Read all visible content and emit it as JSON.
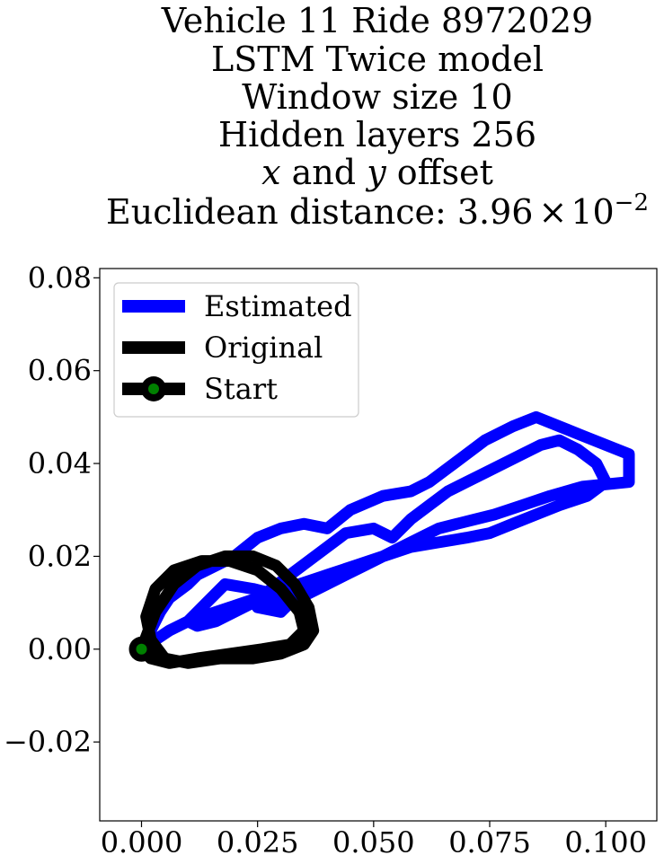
{
  "chart_data": {
    "type": "line",
    "title": {
      "line1": "Vehicle 11 Ride 8972029",
      "line2": "LSTM Twice model",
      "line3": "Window size 10",
      "line4": "Hidden layers 256",
      "line5_x": "x",
      "line5_and": " and ",
      "line5_y": "y",
      "line5_rest": " offset",
      "line6_prefix": "Euclidean distance: 3.96",
      "line6_times": "×",
      "line6_base": "10",
      "line6_exp": "−2"
    },
    "xlim": [
      -0.009,
      0.111
    ],
    "ylim": [
      -0.037,
      0.082
    ],
    "xticks": [
      {
        "value": 0.0,
        "label": "0.000"
      },
      {
        "value": 0.025,
        "label": "0.025"
      },
      {
        "value": 0.05,
        "label": "0.050"
      },
      {
        "value": 0.075,
        "label": "0.075"
      },
      {
        "value": 0.1,
        "label": "0.100"
      }
    ],
    "yticks": [
      {
        "value": -0.02,
        "label": "−0.02"
      },
      {
        "value": 0.0,
        "label": "0.00"
      },
      {
        "value": 0.02,
        "label": "0.02"
      },
      {
        "value": 0.04,
        "label": "0.04"
      },
      {
        "value": 0.06,
        "label": "0.06"
      },
      {
        "value": 0.08,
        "label": "0.08"
      }
    ],
    "grid": false,
    "legend_position": "upper-left",
    "legend": [
      {
        "label": "Estimated",
        "color": "#0000ff"
      },
      {
        "label": "Original",
        "color": "#000000"
      },
      {
        "label": "Start",
        "color": "#000000",
        "marker_color": "#008000"
      }
    ],
    "series": [
      {
        "name": "Estimated",
        "color": "#0000ff",
        "x": [
          0.0,
          0.002,
          0.004,
          0.006,
          0.01,
          0.012,
          0.016,
          0.02,
          0.025,
          0.03,
          0.035,
          0.04,
          0.045,
          0.052,
          0.058,
          0.062,
          0.066,
          0.07,
          0.074,
          0.08,
          0.085,
          0.095,
          0.105,
          0.105,
          0.095,
          0.088,
          0.082,
          0.076,
          0.072,
          0.068,
          0.064,
          0.06,
          0.056,
          0.052,
          0.048,
          0.044,
          0.04,
          0.036,
          0.032,
          0.028,
          0.025,
          0.03,
          0.032,
          0.028,
          0.024,
          0.018,
          0.014,
          0.01,
          0.012,
          0.016,
          0.02,
          0.024,
          0.028,
          0.032,
          0.036,
          0.04,
          0.044,
          0.05,
          0.054,
          0.058,
          0.062,
          0.066,
          0.07,
          0.074,
          0.078,
          0.082,
          0.086,
          0.09,
          0.094,
          0.098,
          0.1,
          0.096,
          0.09,
          0.085,
          0.08,
          0.075,
          0.07,
          0.064,
          0.058,
          0.052,
          0.046,
          0.04,
          0.034,
          0.028,
          0.022,
          0.016,
          0.01,
          0.006,
          0.003,
          0.0
        ],
        "y": [
          0.0,
          0.004,
          0.008,
          0.011,
          0.014,
          0.016,
          0.018,
          0.02,
          0.024,
          0.026,
          0.027,
          0.026,
          0.03,
          0.033,
          0.034,
          0.036,
          0.039,
          0.042,
          0.045,
          0.048,
          0.05,
          0.046,
          0.042,
          0.036,
          0.035,
          0.033,
          0.031,
          0.029,
          0.028,
          0.027,
          0.026,
          0.024,
          0.022,
          0.02,
          0.018,
          0.016,
          0.014,
          0.012,
          0.011,
          0.01,
          0.009,
          0.008,
          0.01,
          0.012,
          0.013,
          0.014,
          0.01,
          0.006,
          0.005,
          0.006,
          0.008,
          0.01,
          0.013,
          0.016,
          0.019,
          0.022,
          0.025,
          0.026,
          0.024,
          0.028,
          0.031,
          0.034,
          0.036,
          0.038,
          0.04,
          0.042,
          0.044,
          0.045,
          0.043,
          0.04,
          0.036,
          0.033,
          0.031,
          0.029,
          0.027,
          0.025,
          0.024,
          0.023,
          0.022,
          0.02,
          0.018,
          0.016,
          0.014,
          0.012,
          0.01,
          0.008,
          0.006,
          0.004,
          0.002,
          0.0
        ]
      },
      {
        "name": "Original",
        "color": "#000000",
        "x": [
          0.0,
          0.003,
          0.007,
          0.012,
          0.018,
          0.024,
          0.029,
          0.033,
          0.036,
          0.037,
          0.035,
          0.03,
          0.024,
          0.017,
          0.01,
          0.005,
          0.002,
          0.001,
          0.003,
          0.007,
          0.013,
          0.019,
          0.025,
          0.03,
          0.034,
          0.035,
          0.032,
          0.026,
          0.019,
          0.012,
          0.006,
          0.002,
          0.0
        ],
        "y": [
          0.0,
          0.008,
          0.014,
          0.018,
          0.02,
          0.02,
          0.018,
          0.014,
          0.009,
          0.004,
          0.001,
          -0.001,
          -0.002,
          -0.002,
          -0.003,
          -0.002,
          0.002,
          0.007,
          0.013,
          0.017,
          0.019,
          0.019,
          0.017,
          0.013,
          0.008,
          0.004,
          0.001,
          0.0,
          -0.001,
          -0.002,
          -0.003,
          -0.002,
          0.0
        ]
      }
    ],
    "start_point": {
      "x": 0.0,
      "y": 0.0
    }
  }
}
